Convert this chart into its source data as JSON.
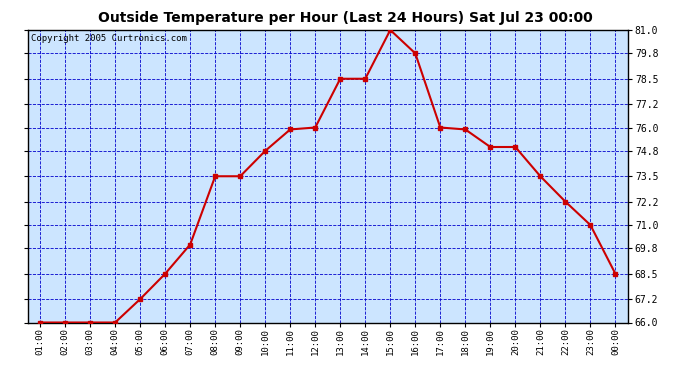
{
  "title": "Outside Temperature per Hour (Last 24 Hours) Sat Jul 23 00:00",
  "copyright": "Copyright 2005 Curtronics.com",
  "x_labels": [
    "01:00",
    "02:00",
    "03:00",
    "04:00",
    "05:00",
    "06:00",
    "07:00",
    "08:00",
    "09:00",
    "10:00",
    "11:00",
    "12:00",
    "13:00",
    "14:00",
    "15:00",
    "16:00",
    "17:00",
    "18:00",
    "19:00",
    "20:00",
    "21:00",
    "22:00",
    "23:00",
    "00:00"
  ],
  "y_values": [
    66.0,
    66.0,
    66.0,
    66.0,
    67.2,
    68.5,
    70.0,
    73.5,
    73.5,
    74.8,
    75.9,
    76.0,
    78.5,
    78.5,
    81.0,
    79.8,
    76.0,
    75.9,
    75.0,
    75.0,
    73.5,
    72.2,
    71.0,
    68.5
  ],
  "line_color": "#cc0000",
  "marker_color": "#cc0000",
  "bg_color": "#cce5ff",
  "grid_color": "#0000cc",
  "title_color": "#000000",
  "border_color": "#000000",
  "ylim_min": 66.0,
  "ylim_max": 81.0,
  "yticks": [
    66.0,
    67.2,
    68.5,
    69.8,
    71.0,
    72.2,
    73.5,
    74.8,
    76.0,
    77.2,
    78.5,
    79.8,
    81.0
  ]
}
